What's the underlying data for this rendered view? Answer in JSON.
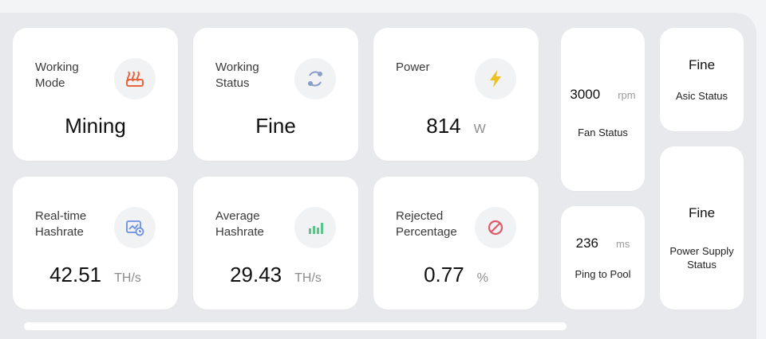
{
  "cards": {
    "working_mode": {
      "label": "Working\nMode",
      "value": "Mining",
      "icon": "heater-icon"
    },
    "working_status": {
      "label": "Working\nStatus",
      "value": "Fine",
      "icon": "cycle-icon"
    },
    "power": {
      "label": "Power",
      "value": "814",
      "unit": "W",
      "icon": "lightning-icon"
    },
    "realtime_hashrate": {
      "label": "Real-time\nHashrate",
      "value": "42.51",
      "unit": "TH/s",
      "icon": "chart-clock-icon"
    },
    "average_hashrate": {
      "label": "Average\nHashrate",
      "value": "29.43",
      "unit": "TH/s",
      "icon": "bar-chart-icon"
    },
    "rejected_percentage": {
      "label": "Rejected\nPercentage",
      "value": "0.77",
      "unit": "%",
      "icon": "prohibited-icon"
    }
  },
  "fan": {
    "value": "3000",
    "unit": "rpm",
    "label": "Fan Status"
  },
  "ping": {
    "value": "236",
    "unit": "ms",
    "label": "Ping to Pool"
  },
  "asic": {
    "value": "Fine",
    "label": "Asic Status"
  },
  "psu": {
    "value": "Fine",
    "label": "Power Supply\nStatus"
  },
  "colors": {
    "heater": "#e8643c",
    "cycle": "#8a9cc7",
    "lightning": "#f0c020",
    "chart": "#6b8fe0",
    "bars": "#5cc48a",
    "prohibited": "#e05a6a"
  }
}
